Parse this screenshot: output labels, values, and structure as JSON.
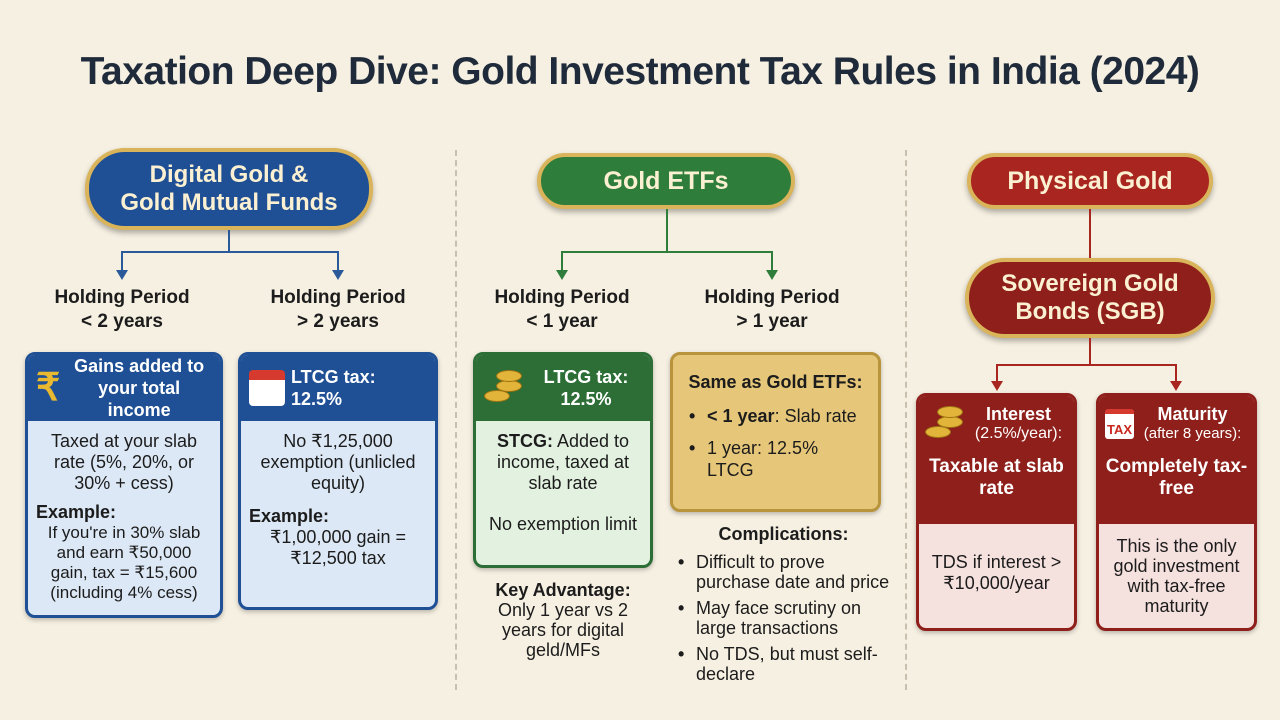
{
  "title": "Taxation Deep Dive: Gold Investment Tax Rules in India (2024)",
  "colors": {
    "blue": "#1f4f94",
    "green": "#2c6e36",
    "red": "#a9251f",
    "gold": "#e6c77a"
  },
  "digital": {
    "title_line1": "Digital Gold &",
    "title_line2": "Gold Mutual Funds",
    "short": {
      "label": "Holding Period",
      "period": "< 2 years",
      "header": "Gains added to your total income",
      "body": "Taxed at your slab rate (5%, 20%, or 30% + cess)",
      "example_label": "Example:",
      "example": "If you're in 30% slab and earn ₹50,000 gain, tax = ₹15,600 (including 4% cess)"
    },
    "long": {
      "label": "Holding Period",
      "period": "> 2 years",
      "header": "LTCG tax: 12.5%",
      "body": "No ₹1,25,000 exemption (unlicled equity)",
      "example_label": "Example:",
      "example": "₹1,00,000 gain = ₹12,500 tax"
    }
  },
  "etf": {
    "title": "Gold ETFs",
    "short": {
      "label": "Holding Period",
      "period": "< 1 year",
      "header": "LTCG tax: 12.5%",
      "stcg_label": "STCG:",
      "stcg": "Added to income, taxed at slab rate",
      "note": "No exemption limit"
    },
    "long": {
      "label": "Holding Period",
      "period": "> 1 year",
      "header": "Same as Gold ETFs:",
      "b1_bold": "< 1 year",
      "b1": ": Slab rate",
      "b2": "1 year: 12.5% LTCG"
    },
    "advantage_label": "Key Advantage:",
    "advantage": "Only 1 year vs 2 years for digital geld/MFs",
    "complications_label": "Complications:",
    "complications": [
      "Difficult to prove purchase date and price",
      "May face scrutiny on large transactions",
      "No TDS, but must self-declare"
    ]
  },
  "physical": {
    "title": "Physical Gold",
    "sgb_line1": "Sovereign Gold",
    "sgb_line2": "Bonds (SGB)",
    "interest": {
      "title": "Interest",
      "sub": "(2.5%/year):",
      "main": "Taxable at slab rate",
      "body": "TDS if interest > ₹10,000/year"
    },
    "maturity": {
      "title": "Maturity",
      "sub": "(after 8 years):",
      "icon_text": "TAX",
      "main": "Completely tax-free",
      "body": "This is the only gold investment with tax-free maturity"
    }
  }
}
